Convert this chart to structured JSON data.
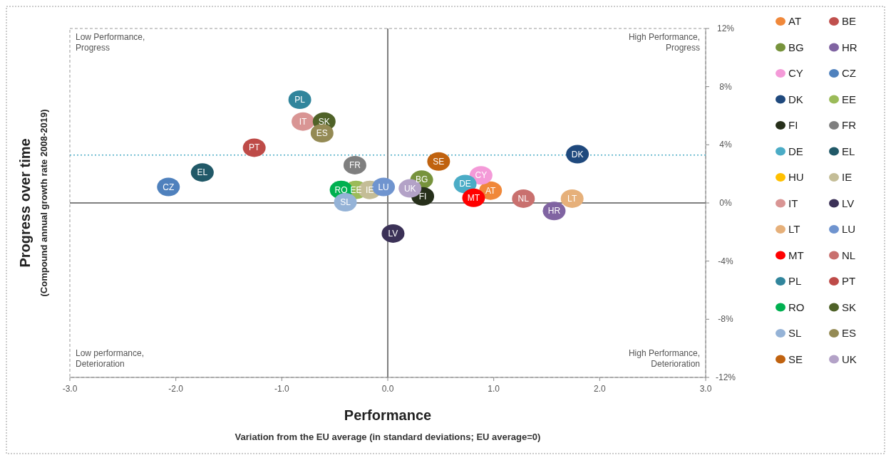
{
  "chart_data": {
    "type": "scatter",
    "xlabel": "Performance",
    "ylabel": "Progress over time",
    "annotations": [
      "Low Performance,\nProgress",
      "High Performance,\nProgress",
      "Low performance,\nDeterioration",
      "High Performance,\nDeterioration",
      "Variation from the EU average (in standard deviations; EU average=0)",
      "(Compound annual growth rate 2008-2019)"
    ],
    "xlim": [
      -3,
      3
    ],
    "xticks": [
      {
        "value": -3,
        "label": "-3.0"
      },
      {
        "value": -2,
        "label": "-2.0"
      },
      {
        "value": -1,
        "label": "-1.0"
      },
      {
        "value": 0,
        "label": "0.0"
      },
      {
        "value": 1,
        "label": "1.0"
      },
      {
        "value": 2,
        "label": "2.0"
      },
      {
        "value": 3,
        "label": "3.0"
      }
    ],
    "ylim": [
      -12,
      12
    ],
    "yticks": [
      {
        "value": -12,
        "label": "-12%"
      },
      {
        "value": -8,
        "label": "-8%"
      },
      {
        "value": -4,
        "label": "-4%"
      },
      {
        "value": 0,
        "label": "0%"
      },
      {
        "value": 4,
        "label": "4%"
      },
      {
        "value": 8,
        "label": "8%"
      },
      {
        "value": 12,
        "label": "12%"
      }
    ],
    "ref_lines": [
      {
        "axis": "y",
        "value": 3.3,
        "color": "#4bacc6",
        "line_style": "dotted"
      },
      {
        "axis": "y",
        "value": 0,
        "color": "#7f7f7f",
        "line_style": "solid"
      },
      {
        "axis": "x",
        "value": 0,
        "color": "#7f7f7f",
        "line_style": "solid"
      }
    ],
    "grid": false,
    "legend": "right",
    "marker": "circle",
    "series": [
      {
        "name": "AT",
        "color": "#f0883a",
        "x": [
          0.97
        ],
        "values": [
          0.85
        ]
      },
      {
        "name": "BE",
        "color": "#c0504d",
        "x": [
          null
        ],
        "values": [
          null
        ]
      },
      {
        "name": "BG",
        "color": "#77933c",
        "x": [
          0.32
        ],
        "values": [
          1.6
        ]
      },
      {
        "name": "HR",
        "color": "#8064a2",
        "x": [
          1.57
        ],
        "values": [
          -0.55
        ]
      },
      {
        "name": "CY",
        "color": "#f49ad8",
        "x": [
          0.88
        ],
        "values": [
          1.9
        ]
      },
      {
        "name": "CZ",
        "color": "#4f81bd",
        "x": [
          -2.07
        ],
        "values": [
          1.1
        ]
      },
      {
        "name": "DK",
        "color": "#1f497d",
        "x": [
          1.79
        ],
        "values": [
          3.35
        ]
      },
      {
        "name": "EE",
        "color": "#9bbb59",
        "x": [
          -0.3
        ],
        "values": [
          0.9
        ]
      },
      {
        "name": "FI",
        "color": "#262f1a",
        "x": [
          0.33
        ],
        "values": [
          0.45
        ]
      },
      {
        "name": "FR",
        "color": "#7f7f7f",
        "x": [
          -0.31
        ],
        "values": [
          2.6
        ]
      },
      {
        "name": "DE",
        "color": "#4bacc6",
        "x": [
          0.73
        ],
        "values": [
          1.3
        ]
      },
      {
        "name": "EL",
        "color": "#215968",
        "x": [
          -1.75
        ],
        "values": [
          2.1
        ]
      },
      {
        "name": "HU",
        "color": "#ffc000",
        "x": [
          null
        ],
        "values": [
          null
        ]
      },
      {
        "name": "IE",
        "color": "#c4bd97",
        "x": [
          -0.17
        ],
        "values": [
          0.9
        ]
      },
      {
        "name": "IT",
        "color": "#d99594",
        "x": [
          -0.8
        ],
        "values": [
          5.6
        ]
      },
      {
        "name": "LV",
        "color": "#3b3157",
        "x": [
          0.05
        ],
        "values": [
          -2.1
        ]
      },
      {
        "name": "LT",
        "color": "#e6b07a",
        "x": [
          1.74
        ],
        "values": [
          0.3
        ]
      },
      {
        "name": "LU",
        "color": "#6f94cf",
        "x": [
          -0.04
        ],
        "values": [
          1.1
        ]
      },
      {
        "name": "MT",
        "color": "#ff0000",
        "x": [
          0.81
        ],
        "values": [
          0.35
        ]
      },
      {
        "name": "NL",
        "color": "#c9706e",
        "x": [
          1.28
        ],
        "values": [
          0.3
        ]
      },
      {
        "name": "PL",
        "color": "#31859c",
        "x": [
          -0.83
        ],
        "values": [
          7.1
        ]
      },
      {
        "name": "PT",
        "color": "#be4b48",
        "x": [
          -1.26
        ],
        "values": [
          3.8
        ]
      },
      {
        "name": "RO",
        "color": "#00b050",
        "x": [
          -0.44
        ],
        "values": [
          0.9
        ]
      },
      {
        "name": "SK",
        "color": "#4f6228",
        "x": [
          -0.6
        ],
        "values": [
          5.6
        ]
      },
      {
        "name": "SL",
        "color": "#95b3d7",
        "x": [
          -0.4
        ],
        "values": [
          0.05
        ]
      },
      {
        "name": "ES",
        "color": "#948a54",
        "x": [
          -0.62
        ],
        "values": [
          4.8
        ]
      },
      {
        "name": "SE",
        "color": "#c0620f",
        "x": [
          0.48
        ],
        "values": [
          2.85
        ]
      },
      {
        "name": "UK",
        "color": "#b3a2c7",
        "x": [
          0.21
        ],
        "values": [
          1.0
        ]
      }
    ]
  }
}
